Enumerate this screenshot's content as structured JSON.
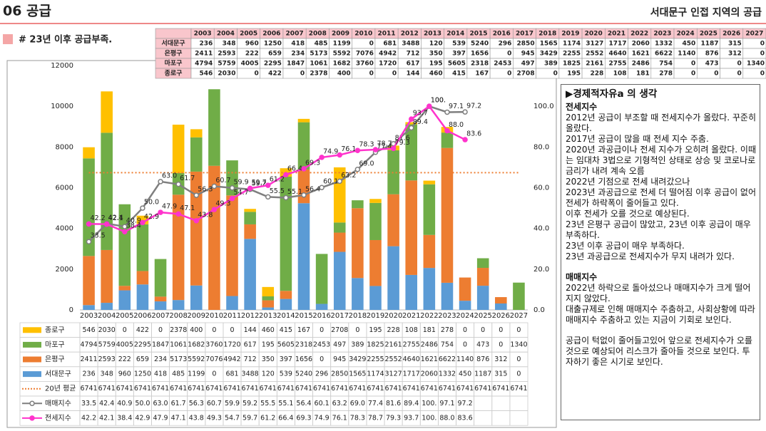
{
  "header": {
    "title": "06 공급",
    "subtitle": "서대문구 인접 지역의 공급",
    "note": "# 23년 이후 공급부족."
  },
  "chart_data": {
    "type": "bar",
    "stacked": true,
    "categories": [
      "2003",
      "2004",
      "2005",
      "2006",
      "2007",
      "2008",
      "2009",
      "2010",
      "2011",
      "2012",
      "2013",
      "2014",
      "2015",
      "2016",
      "2017",
      "2018",
      "2019",
      "2020",
      "2021",
      "2022",
      "2023",
      "2024",
      "2025",
      "2026",
      "2027"
    ],
    "ylim": [
      0,
      12000
    ],
    "yticks": [
      0,
      2000,
      4000,
      6000,
      8000,
      10000,
      12000
    ],
    "y2lim": [
      0,
      120
    ],
    "y2ticks": [
      {
        "value": 0,
        "label": "0.0"
      },
      {
        "value": 20,
        "label": "20.0"
      },
      {
        "value": 40,
        "label": "40.0"
      },
      {
        "value": 60,
        "label": "60.0"
      },
      {
        "value": 80,
        "label": "80.0"
      },
      {
        "value": 100,
        "label": "100.0"
      }
    ],
    "grid": false,
    "series": [
      {
        "name": "서대문구",
        "type": "bar",
        "color": "#5b9bd5",
        "values": [
          236,
          348,
          960,
          1250,
          418,
          485,
          1199,
          0,
          681,
          3488,
          120,
          539,
          5240,
          296,
          2850,
          1565,
          1174,
          3127,
          1717,
          2060,
          1332,
          450,
          1187,
          315,
          0
        ]
      },
      {
        "name": "은평구",
        "type": "bar",
        "color": "#ed7d31",
        "values": [
          2411,
          2593,
          222,
          659,
          234,
          5173,
          5592,
          7076,
          4942,
          712,
          350,
          397,
          1656,
          0,
          945,
          3429,
          2255,
          2552,
          4640,
          1621,
          6622,
          1140,
          876,
          312,
          0
        ]
      },
      {
        "name": "마포구",
        "type": "bar",
        "color": "#70ad47",
        "values": [
          4794,
          5759,
          4005,
          2295,
          1847,
          1061,
          1682,
          3760,
          1720,
          617,
          195,
          5605,
          2318,
          2453,
          497,
          389,
          1825,
          2161,
          2755,
          2486,
          754,
          0,
          473,
          0,
          1340
        ]
      },
      {
        "name": "종로구",
        "type": "bar",
        "color": "#ffc000",
        "values": [
          546,
          2030,
          0,
          422,
          0,
          2378,
          400,
          0,
          0,
          144,
          460,
          415,
          167,
          0,
          2708,
          0,
          195,
          228,
          108,
          181,
          278,
          0,
          0,
          0,
          0
        ]
      },
      {
        "name": "20년 평균",
        "type": "line",
        "style": "dotted",
        "color": "#ed7d31",
        "values": [
          6741,
          6741,
          6741,
          6741,
          6741,
          6741,
          6741,
          6741,
          6741,
          6741,
          6741,
          6741,
          6741,
          6741,
          6741,
          6741,
          6741,
          6741,
          6741,
          6741,
          6741,
          6741,
          6741,
          6741,
          6741
        ]
      },
      {
        "name": "매매지수",
        "type": "line",
        "axis": "y2",
        "marker": "hollow",
        "color": "#7f7f7f",
        "values": [
          33.5,
          42.4,
          40.9,
          50,
          63,
          61.7,
          56.3,
          60.7,
          59.9,
          59.2,
          55.5,
          55.1,
          56.4,
          60.1,
          63.2,
          69,
          77.4,
          81.6,
          89.4,
          100,
          97.1,
          97.2,
          null,
          null,
          null
        ],
        "value_labels": [
          "33.5",
          "42.4",
          "40.9",
          "50.0",
          "63.0",
          "61.7",
          "56.3",
          "60.7",
          "59.9",
          "59.2",
          "55.5",
          "55.1",
          "56.4",
          "60.1",
          "63.2",
          "69.0",
          "77.4",
          "81.6",
          "89.4",
          "100.",
          "97.1",
          "97.2",
          null,
          null,
          null
        ]
      },
      {
        "name": "전세지수",
        "type": "line",
        "axis": "y2",
        "marker": "filled",
        "color": "#ff33cc",
        "values": [
          42.2,
          42.1,
          38.4,
          42.9,
          47.9,
          47.1,
          43.8,
          49.3,
          54.7,
          59.7,
          61.2,
          66.4,
          69.3,
          74.9,
          76.1,
          78.3,
          78.7,
          79.3,
          93.7,
          100,
          88,
          83.6,
          null,
          null,
          null
        ],
        "value_labels": [
          "42.2",
          "42.1",
          "38.4",
          "42.9",
          "47.9",
          "47.1",
          "43.8",
          "49.3",
          "54.7",
          "59.7",
          "61.2",
          "66.4",
          "69.3",
          "74.9",
          "76.1",
          "78.3",
          "78.7",
          "79.3",
          "93.7",
          "100.",
          "88.0",
          "83.6",
          null,
          null,
          null
        ]
      }
    ]
  },
  "notes": {
    "title": "▶경제적자유a 의 생각",
    "sections": [
      {
        "heading": "전세지수",
        "lines": [
          "2012년 공급이 부조할 때 전세지수가 올랐다. 꾸준히 올랐다.",
          "2017년 공급이 많을 때 전세 지수 주춤.",
          "2020년 과공급이나 전세 지수가 오히려 올랐다. 이때는 임대차 3법으로 기형적인 상태로 상승 및 코로나로 금리가 내려 계속 오름",
          "2022년 기점으로 전세 내려갔으나",
          "2023년 과공급으로 전세 더 떨어짐 이후 공급이 없어 전세가 하락폭이 줄어들고 있다.",
          "이후 전세가 오를 것으로 예상된다.",
          "23년 은평구 공급이 많았고, 23년 이후 공급이 매우 부족하다.",
          "23년 이후 공급이 매우 부족하다.",
          "23년 과공급으로 전세지수가 무지 내려가 있다."
        ]
      },
      {
        "heading": "매매지수",
        "lines": [
          "2022년 하락으로 돌아섰으나 매매지수가 크게 떨어지지 않았다.",
          "대출규제로 인해 매매지수 주춤하고, 사회상황에 따라 매매지수 주춤하고 있는 지금이 기회로 보인다.",
          "공급이 턱없이 줄어들고있어 앞으로 전세지수가 오를 것으로 예상되어 리스크가 줄아들 것으로 보인다. 투자하기 좋은 시기로 보인다."
        ]
      }
    ]
  }
}
